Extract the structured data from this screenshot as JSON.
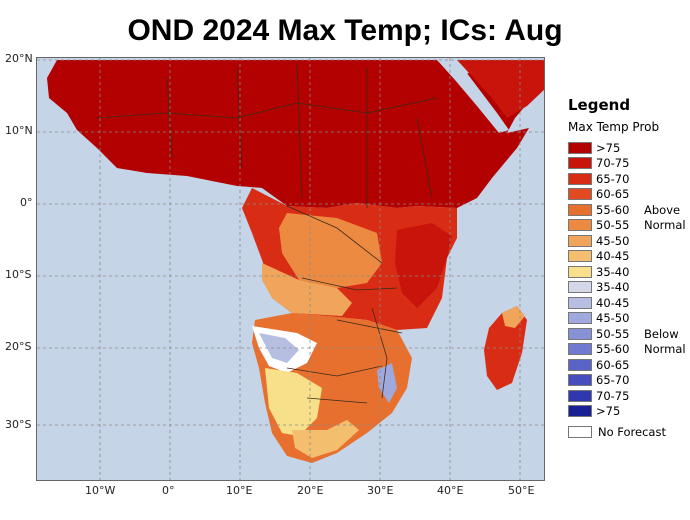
{
  "title": "OND 2024 Max Temp; ICs: Aug",
  "axes": {
    "lat_labels": [
      "20°N",
      "10°N",
      "0°",
      "10°S",
      "20°S",
      "30°S"
    ],
    "lon_labels": [
      "10°W",
      "0°",
      "10°E",
      "20°E",
      "30°E",
      "40°E",
      "50°E"
    ]
  },
  "legend": {
    "title": "Legend",
    "subtitle": "Max Temp Prob",
    "items": [
      {
        "label": ">75",
        "color": "#b30000",
        "note": ""
      },
      {
        "label": "70-75",
        "color": "#c8140a",
        "note": ""
      },
      {
        "label": "65-70",
        "color": "#d82d14",
        "note": ""
      },
      {
        "label": "60-65",
        "color": "#e24a22",
        "note": ""
      },
      {
        "label": "55-60",
        "color": "#e8702f",
        "note": "Above"
      },
      {
        "label": "50-55",
        "color": "#ed8a42",
        "note": "Normal"
      },
      {
        "label": "45-50",
        "color": "#f0a55a",
        "note": ""
      },
      {
        "label": "40-45",
        "color": "#f3bf6e",
        "note": ""
      },
      {
        "label": "35-40",
        "color": "#f8e08a",
        "note": ""
      },
      {
        "label": "35-40",
        "color": "#d4d8e8",
        "note": ""
      },
      {
        "label": "40-45",
        "color": "#b6bfe2",
        "note": ""
      },
      {
        "label": "45-50",
        "color": "#9fa9dd",
        "note": ""
      },
      {
        "label": "50-55",
        "color": "#8791d6",
        "note": "Below"
      },
      {
        "label": "55-60",
        "color": "#6f7ad0",
        "note": "Normal"
      },
      {
        "label": "60-65",
        "color": "#5a63c8",
        "note": ""
      },
      {
        "label": "65-70",
        "color": "#454dbf",
        "note": ""
      },
      {
        "label": "70-75",
        "color": "#3038b0",
        "note": ""
      },
      {
        "label": ">75",
        "color": "#1a2196",
        "note": ""
      }
    ],
    "no_forecast_label": "No Forecast"
  },
  "colors": {
    "ocean": "#c5d4e6",
    "land_no_data": "#ffffff",
    "grid": "#8a8a8a",
    "border": "#3a2a1a"
  }
}
